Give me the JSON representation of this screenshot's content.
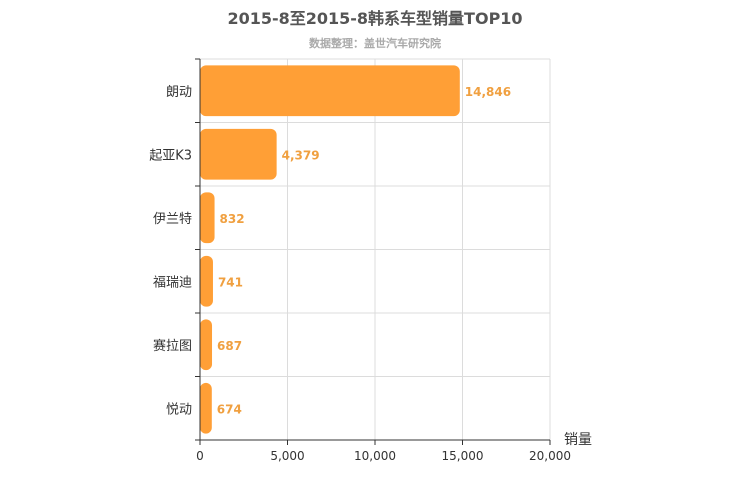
{
  "chart_data": {
    "type": "bar",
    "orientation": "horizontal",
    "title": "2015-8至2015-8韩系车型销量TOP10",
    "subtitle": "数据整理：盖世汽车研究院",
    "categories": [
      "朗动",
      "起亚K3",
      "伊兰特",
      "福瑞迪",
      "赛拉图",
      "悦动"
    ],
    "values": [
      14846,
      4379,
      832,
      741,
      687,
      674
    ],
    "value_labels": [
      "14,846",
      "4,379",
      "832",
      "741",
      "687",
      "674"
    ],
    "xlabel": "销量",
    "xlim": [
      0,
      20000
    ],
    "x_ticks": [
      0,
      5000,
      10000,
      15000,
      20000
    ],
    "x_tick_labels": [
      "0",
      "5,000",
      "10,000",
      "15,000",
      "20,000"
    ],
    "grid": true,
    "bar_color": "#ff9f36",
    "label_color": "#f0a040"
  }
}
